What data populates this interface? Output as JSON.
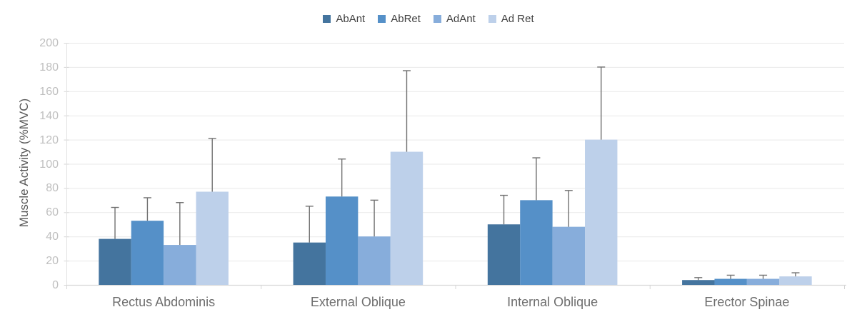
{
  "chart_data": {
    "type": "bar",
    "title": "",
    "xlabel": "",
    "ylabel": "Muscle Activity (%MVC)",
    "ylim": [
      0,
      200
    ],
    "yticks": [
      0,
      20,
      40,
      60,
      80,
      100,
      120,
      140,
      160,
      180,
      200
    ],
    "grid": true,
    "legend_position": "top-center",
    "error_bars": "upper-only",
    "categories": [
      "Rectus Abdominis",
      "External Oblique",
      "Internal Oblique",
      "Erector Spinae"
    ],
    "series": [
      {
        "name": "AbAnt",
        "color": "#44749E",
        "values": [
          38,
          35,
          50,
          4
        ],
        "errors_up": [
          26,
          30,
          24,
          2
        ]
      },
      {
        "name": "AbRet",
        "color": "#5590C8",
        "values": [
          53,
          73,
          70,
          5
        ],
        "errors_up": [
          19,
          31,
          35,
          3
        ]
      },
      {
        "name": "AdAnt",
        "color": "#87ADDB",
        "values": [
          33,
          40,
          48,
          5
        ],
        "errors_up": [
          35,
          30,
          30,
          3
        ]
      },
      {
        "name": "Ad Ret",
        "color": "#BDD0EA",
        "values": [
          77,
          110,
          120,
          7
        ],
        "errors_up": [
          44,
          67,
          60,
          3
        ]
      }
    ],
    "style_colors": {
      "gridline": "#E9E9E9",
      "axis_line": "#D6D6D6",
      "error_bar": "#717171",
      "tick_label": "#BFBFBF",
      "category_label": "#6E6E6E",
      "axis_title": "#595959",
      "legend_text": "#404040"
    }
  }
}
